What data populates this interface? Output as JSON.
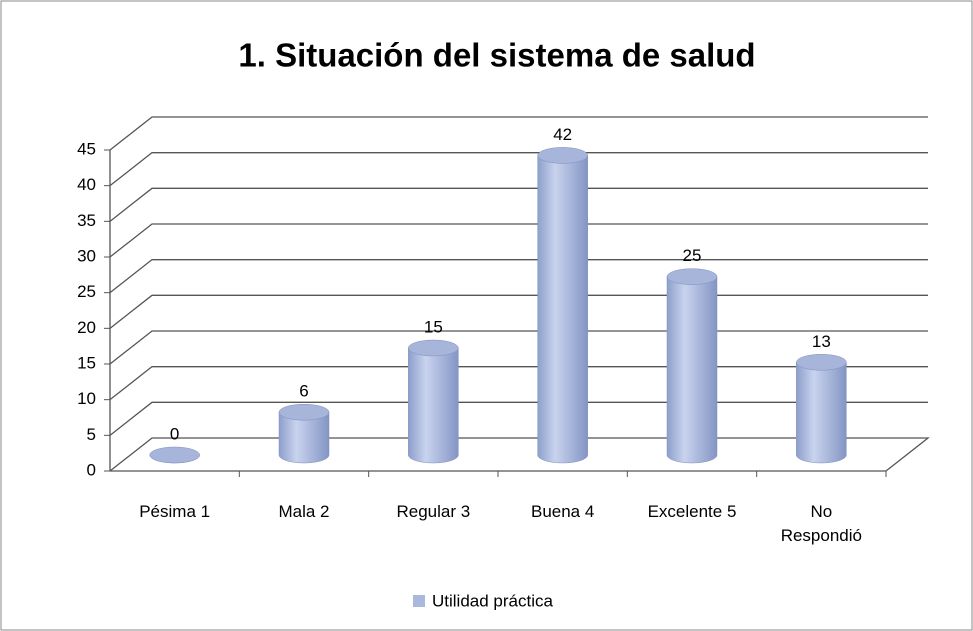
{
  "chart_data": {
    "type": "bar3d",
    "title": "1. Situación del sistema de salud",
    "categories": [
      "Pésima 1",
      "Mala 2",
      "Regular 3",
      "Buena 4",
      "Excelente 5",
      "No\nRespondió"
    ],
    "series": [
      {
        "name": "Utilidad práctica",
        "color": "#a9b8dc",
        "values": [
          0,
          6,
          15,
          42,
          25,
          13
        ]
      }
    ],
    "ylim": [
      0,
      45
    ],
    "yticks": [
      0,
      5,
      10,
      15,
      20,
      25,
      30,
      35,
      40,
      45
    ],
    "grid": true,
    "legend": "bottom"
  }
}
